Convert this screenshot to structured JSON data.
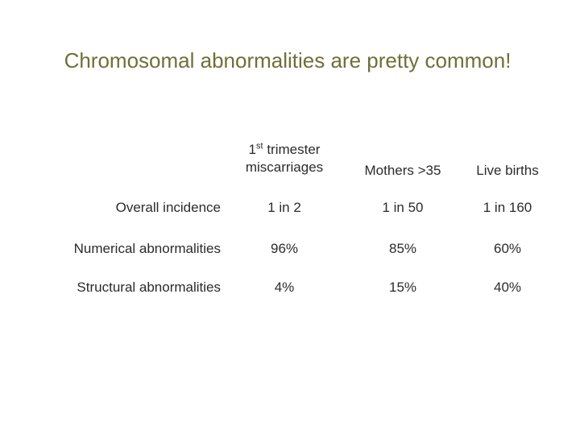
{
  "title": "Chromosomal abnormalities are pretty common!",
  "table": {
    "columns": [
      {
        "lead": "1",
        "sup": "st",
        "rest": "trimester miscarriages"
      },
      "Mothers >35",
      "Live births"
    ],
    "rows": [
      [
        "Overall incidence",
        "1 in 2",
        "1 in 50",
        "1 in 160"
      ],
      [
        "Numerical abnormalities",
        "96%",
        "85%",
        "60%"
      ],
      [
        "Structural abnormalities",
        "4%",
        "15%",
        "40%"
      ]
    ]
  }
}
